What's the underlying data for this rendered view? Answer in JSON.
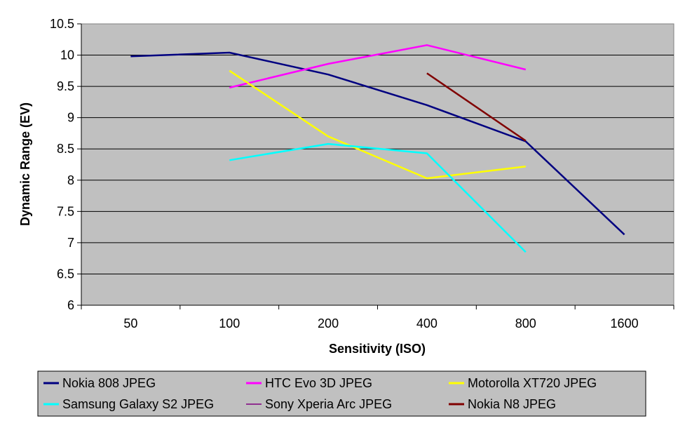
{
  "chart_data": {
    "type": "line",
    "title": "",
    "xlabel": "Sensitivity (ISO)",
    "ylabel": "Dynamic Range (EV)",
    "categories": [
      "50",
      "100",
      "200",
      "400",
      "800",
      "1600"
    ],
    "ylim": [
      6,
      10.5
    ],
    "yticks": [
      "6",
      "6.5",
      "7",
      "7.5",
      "8",
      "8.5",
      "9",
      "9.5",
      "10",
      "10.5"
    ],
    "grid": true,
    "plot_background": "#c0c0c0",
    "legend_position": "bottom",
    "series": [
      {
        "name": "Nokia 808 JPEG",
        "color": "#000080",
        "values": [
          9.98,
          10.04,
          9.69,
          9.2,
          8.62,
          7.13
        ]
      },
      {
        "name": "HTC Evo 3D JPEG",
        "color": "#ff00ff",
        "values": [
          null,
          9.48,
          9.86,
          10.16,
          9.77,
          null
        ]
      },
      {
        "name": "Motorolla XT720 JPEG",
        "color": "#ffff00",
        "values": [
          null,
          9.75,
          8.7,
          8.03,
          8.22,
          null
        ]
      },
      {
        "name": "Samsung Galaxy S2 JPEG",
        "color": "#00ffff",
        "values": [
          null,
          8.32,
          8.58,
          8.43,
          6.85,
          null
        ]
      },
      {
        "name": "Sony Xperia Arc JPEG",
        "color": "#800080",
        "values": [
          null,
          null,
          null,
          null,
          null,
          null
        ]
      },
      {
        "name": "Nokia N8 JPEG",
        "color": "#800000",
        "values": [
          null,
          null,
          null,
          9.71,
          8.63,
          null
        ]
      }
    ]
  }
}
